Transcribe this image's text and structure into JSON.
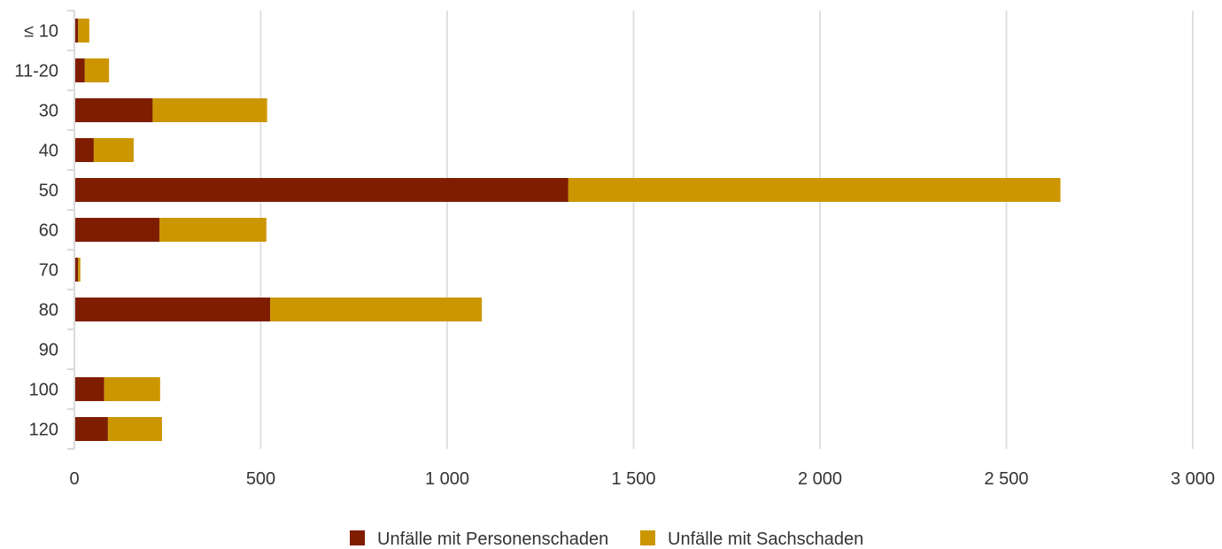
{
  "chart_data": {
    "type": "bar",
    "orientation": "horizontal",
    "stacked": true,
    "categories": [
      "≤ 10",
      "11-20",
      "30",
      "40",
      "50",
      "60",
      "70",
      "80",
      "90",
      "100",
      "120"
    ],
    "series": [
      {
        "name": "Unfälle mit Personenschaden",
        "color": "#7f1d00",
        "values": [
          10,
          28,
          210,
          52,
          1325,
          228,
          10,
          525,
          0,
          80,
          90
        ]
      },
      {
        "name": "Unfälle mit Sachschaden",
        "color": "#cc9600",
        "values": [
          30,
          65,
          307,
          107,
          1320,
          287,
          6,
          568,
          0,
          150,
          145
        ]
      }
    ],
    "xlim": [
      0,
      3000
    ],
    "xticks": [
      0,
      500,
      1000,
      1500,
      2000,
      2500,
      3000
    ],
    "xtick_labels": [
      "0",
      "500",
      "1 000",
      "1 500",
      "2 000",
      "2 500",
      "3 000"
    ],
    "grid": "vertical",
    "legend_position": "bottom"
  }
}
